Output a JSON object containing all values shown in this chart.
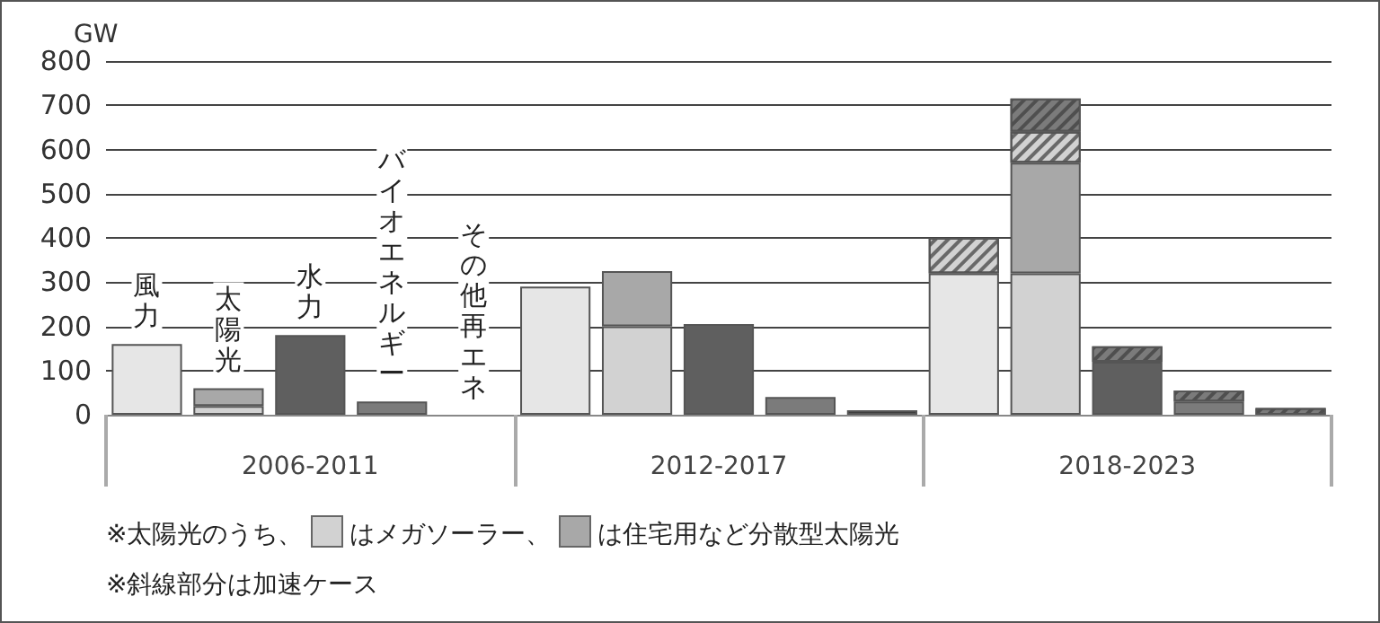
{
  "chart_data": {
    "type": "bar",
    "stacked": true,
    "ylabel": "GW",
    "categories": [
      null,
      null,
      "2006-2011",
      null,
      null,
      null,
      null,
      "2012-2017",
      null,
      null,
      null,
      null,
      "2018-2023",
      null,
      null
    ],
    "series": [
      {
        "colors": [
          "#e6e6e6",
          "#d2d2d2",
          "#5f5f5f",
          "#7b7b7b",
          "#3f3f3f",
          "#e6e6e6",
          "#d2d2d2",
          "#5f5f5f",
          "#7b7b7b",
          "#3f3f3f",
          "#e6e6e6",
          "#d2d2d2",
          "#5f5f5f",
          "#7b7b7b",
          "#3f3f3f"
        ],
        "values": [
          160,
          20,
          180,
          30,
          null,
          290,
          200,
          205,
          40,
          10,
          320,
          320,
          120,
          30,
          null
        ]
      },
      {
        "color": "#a8a8a8",
        "values": [
          null,
          40,
          null,
          null,
          null,
          null,
          125,
          null,
          null,
          null,
          null,
          250,
          null,
          null,
          null
        ]
      },
      {
        "color": "#d2d2d2",
        "values": [
          null,
          null,
          null,
          null,
          null,
          null,
          null,
          null,
          null,
          null,
          80,
          70,
          null,
          null,
          null
        ]
      },
      {
        "color": "#7b7b7b",
        "values": [
          null,
          null,
          null,
          null,
          null,
          null,
          null,
          null,
          null,
          null,
          null,
          75,
          35,
          25,
          15
        ]
      }
    ],
    "ylim": [
      0,
      800
    ],
    "yticks": [
      0,
      100,
      200,
      300,
      400,
      500,
      600,
      700,
      800
    ],
    "grid": "y",
    "annotations": [
      "風力",
      "太陽光",
      "水力",
      "バイオエネルギー",
      "その他再エネ",
      "※太陽光のうち、",
      "はメガソーラー、",
      "は住宅用など分散型太陽光",
      "※斜線部分は加速ケース"
    ]
  }
}
